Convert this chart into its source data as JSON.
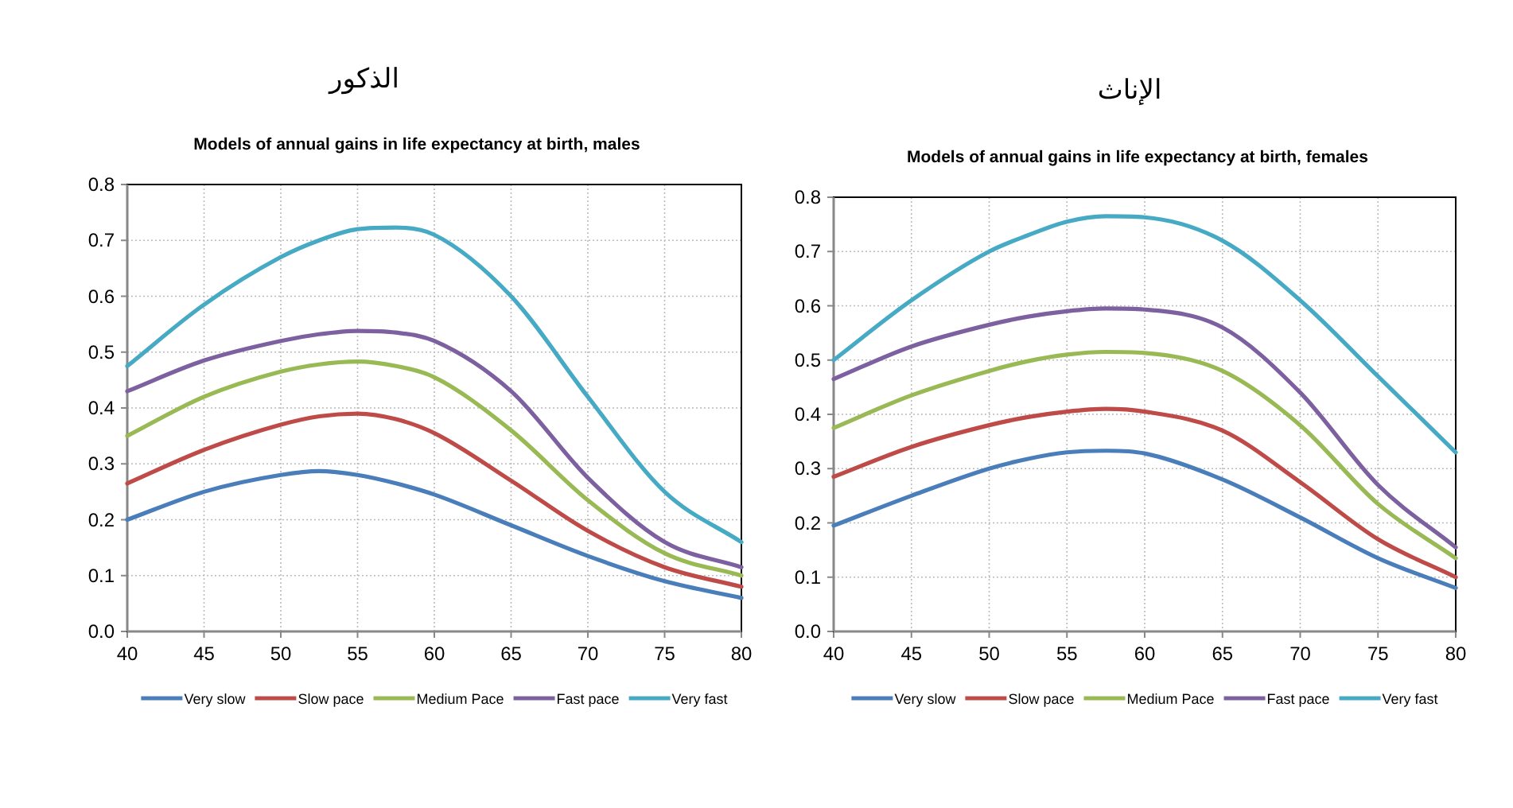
{
  "chart_data": [
    {
      "type": "line",
      "title": "الذكور",
      "subtitle": "Models of annual gains in life expectancy at birth, males",
      "x": [
        40,
        45,
        50,
        52.5,
        55,
        57.5,
        60,
        65,
        70,
        75,
        80
      ],
      "series": [
        {
          "name": "Very slow",
          "color": "#4a7ebb",
          "values": [
            0.2,
            0.25,
            0.28,
            0.287,
            0.28,
            0.265,
            0.245,
            0.19,
            0.135,
            0.09,
            0.06
          ]
        },
        {
          "name": "Slow pace",
          "color": "#be4b48",
          "values": [
            0.265,
            0.325,
            0.37,
            0.385,
            0.39,
            0.38,
            0.355,
            0.27,
            0.18,
            0.115,
            0.08
          ]
        },
        {
          "name": "Medium Pace",
          "color": "#98b954",
          "values": [
            0.35,
            0.42,
            0.465,
            0.478,
            0.483,
            0.475,
            0.455,
            0.36,
            0.235,
            0.14,
            0.1
          ]
        },
        {
          "name": "Fast pace",
          "color": "#7d60a0",
          "values": [
            0.43,
            0.485,
            0.52,
            0.532,
            0.538,
            0.535,
            0.52,
            0.43,
            0.275,
            0.16,
            0.115
          ]
        },
        {
          "name": "Very fast",
          "color": "#46aac5",
          "values": [
            0.475,
            0.585,
            0.67,
            0.7,
            0.72,
            0.723,
            0.71,
            0.6,
            0.42,
            0.25,
            0.16
          ]
        }
      ],
      "xlim": [
        40,
        80
      ],
      "ylim": [
        0,
        0.8
      ],
      "xticks": [
        40,
        45,
        50,
        55,
        60,
        65,
        70,
        75,
        80
      ],
      "yticks": [
        {
          "value": 0,
          "label": "0.0"
        },
        0.1,
        0.2,
        0.3,
        0.4,
        0.5,
        0.6,
        0.7,
        0.8
      ],
      "grid": true,
      "legend": "bottom",
      "marker": "none"
    },
    {
      "type": "line",
      "title": "الإناث",
      "subtitle": "Models of annual gains in life expectancy at birth, females",
      "x": [
        40,
        45,
        50,
        52.5,
        55,
        57.5,
        60,
        65,
        70,
        75,
        80
      ],
      "series": [
        {
          "name": "Very slow",
          "color": "#4a7ebb",
          "values": [
            0.195,
            0.25,
            0.3,
            0.318,
            0.33,
            0.333,
            0.328,
            0.28,
            0.21,
            0.135,
            0.08
          ]
        },
        {
          "name": "Slow pace",
          "color": "#be4b48",
          "values": [
            0.285,
            0.34,
            0.38,
            0.395,
            0.405,
            0.41,
            0.405,
            0.37,
            0.275,
            0.17,
            0.1
          ]
        },
        {
          "name": "Medium Pace",
          "color": "#98b954",
          "values": [
            0.375,
            0.435,
            0.48,
            0.498,
            0.51,
            0.515,
            0.513,
            0.48,
            0.38,
            0.235,
            0.135
          ]
        },
        {
          "name": "Fast pace",
          "color": "#7d60a0",
          "values": [
            0.465,
            0.525,
            0.565,
            0.58,
            0.59,
            0.595,
            0.593,
            0.56,
            0.44,
            0.27,
            0.155
          ]
        },
        {
          "name": "Very fast",
          "color": "#46aac5",
          "values": [
            0.5,
            0.61,
            0.7,
            0.73,
            0.755,
            0.765,
            0.763,
            0.72,
            0.61,
            0.47,
            0.33
          ]
        }
      ],
      "xlim": [
        40,
        80
      ],
      "ylim": [
        0,
        0.8
      ],
      "xticks": [
        40,
        45,
        50,
        55,
        60,
        65,
        70,
        75,
        80
      ],
      "yticks": [
        {
          "value": 0,
          "label": "0.0"
        },
        0.1,
        0.2,
        0.3,
        0.4,
        0.5,
        0.6,
        0.7,
        0.8
      ],
      "grid": true,
      "legend": "bottom",
      "marker": "none"
    }
  ]
}
